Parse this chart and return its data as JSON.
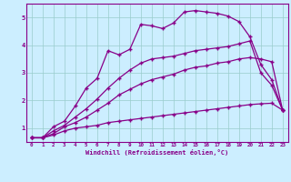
{
  "xlabel": "Windchill (Refroidissement éolien,°C)",
  "bg_color": "#cceeff",
  "line_color": "#880088",
  "grid_color": "#99cccc",
  "xlim": [
    -0.5,
    23.5
  ],
  "ylim": [
    0.5,
    5.5
  ],
  "yticks": [
    1,
    2,
    3,
    4,
    5
  ],
  "xticks": [
    0,
    1,
    2,
    3,
    4,
    5,
    6,
    7,
    8,
    9,
    10,
    11,
    12,
    13,
    14,
    15,
    16,
    17,
    18,
    19,
    20,
    21,
    22,
    23
  ],
  "line1_x": [
    0,
    1,
    2,
    3,
    4,
    5,
    6,
    7,
    8,
    9,
    10,
    11,
    12,
    13,
    14,
    15,
    16,
    17,
    18,
    19,
    20,
    21,
    22,
    23
  ],
  "line1_y": [
    0.65,
    0.65,
    0.75,
    0.9,
    1.0,
    1.05,
    1.1,
    1.2,
    1.25,
    1.3,
    1.35,
    1.4,
    1.45,
    1.5,
    1.55,
    1.6,
    1.65,
    1.7,
    1.75,
    1.8,
    1.85,
    1.88,
    1.9,
    1.65
  ],
  "line2_x": [
    0,
    1,
    2,
    3,
    4,
    5,
    6,
    7,
    8,
    9,
    10,
    11,
    12,
    13,
    14,
    15,
    16,
    17,
    18,
    19,
    20,
    21,
    22,
    23
  ],
  "line2_y": [
    0.65,
    0.65,
    0.8,
    1.05,
    1.2,
    1.4,
    1.65,
    1.9,
    2.2,
    2.4,
    2.6,
    2.75,
    2.85,
    2.95,
    3.1,
    3.2,
    3.25,
    3.35,
    3.4,
    3.5,
    3.55,
    3.5,
    3.4,
    1.65
  ],
  "line3_x": [
    0,
    1,
    2,
    3,
    4,
    5,
    6,
    7,
    8,
    9,
    10,
    11,
    12,
    13,
    14,
    15,
    16,
    17,
    18,
    19,
    20,
    21,
    22,
    23
  ],
  "line3_y": [
    0.65,
    0.65,
    0.9,
    1.1,
    1.4,
    1.7,
    2.05,
    2.45,
    2.8,
    3.1,
    3.35,
    3.5,
    3.55,
    3.6,
    3.7,
    3.8,
    3.85,
    3.9,
    3.95,
    4.05,
    4.15,
    3.0,
    2.55,
    1.65
  ],
  "line4_x": [
    0,
    1,
    2,
    3,
    4,
    5,
    6,
    7,
    8,
    9,
    10,
    11,
    12,
    13,
    14,
    15,
    16,
    17,
    18,
    19,
    20,
    21,
    22,
    23
  ],
  "line4_y": [
    0.65,
    0.65,
    1.05,
    1.25,
    1.8,
    2.45,
    2.8,
    3.8,
    3.65,
    3.85,
    4.75,
    4.7,
    4.6,
    4.8,
    5.2,
    5.25,
    5.2,
    5.15,
    5.05,
    4.85,
    4.3,
    3.3,
    2.75,
    1.65
  ]
}
